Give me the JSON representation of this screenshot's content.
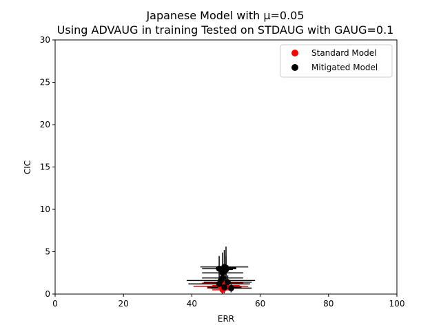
{
  "chart_data": {
    "type": "scatter",
    "title": "Japanese Model with μ=0.05",
    "subtitle": "Using ADVAUG in training Tested on STDAUG with GAUG=0.1",
    "xlabel": "ERR",
    "ylabel": "CIC",
    "xlim": [
      0,
      100
    ],
    "ylim": [
      0,
      30
    ],
    "x_ticks": [
      "0",
      "20",
      "40",
      "60",
      "80",
      "100"
    ],
    "y_ticks": [
      "0",
      "5",
      "10",
      "15",
      "20",
      "25",
      "30"
    ],
    "grid": false,
    "legend_position": "top-right",
    "colors": {
      "standard": "#ff0000",
      "mitigated": "#000000"
    },
    "series": [
      {
        "name": "Standard Model",
        "color": "#ff0000",
        "points": [
          {
            "x": 48.5,
            "y": 0.9,
            "xerr": 8.0,
            "yerr": 0.6
          },
          {
            "x": 49.5,
            "y": 0.7,
            "xerr": 5.0,
            "yerr": 0.4
          },
          {
            "x": 49.0,
            "y": 1.3,
            "xerr": 6.0,
            "yerr": 0.8
          },
          {
            "x": 49.0,
            "y": 0.5,
            "xerr": 3.0,
            "yerr": 0.5
          },
          {
            "x": 50.0,
            "y": 1.0,
            "xerr": 4.0,
            "yerr": 0.5
          }
        ]
      },
      {
        "name": "Mitigated Model",
        "color": "#000000",
        "points": [
          {
            "x": 48.0,
            "y": 3.0,
            "xerr": 5.0,
            "yerr": 1.5
          },
          {
            "x": 49.5,
            "y": 3.2,
            "xerr": 7.0,
            "yerr": 2.0
          },
          {
            "x": 49.0,
            "y": 2.5,
            "xerr": 6.0,
            "yerr": 2.4
          },
          {
            "x": 50.0,
            "y": 3.1,
            "xerr": 3.0,
            "yerr": 2.5
          },
          {
            "x": 48.5,
            "y": 1.6,
            "xerr": 10.0,
            "yerr": 0.4
          },
          {
            "x": 48.0,
            "y": 1.2,
            "xerr": 9.0,
            "yerr": 0.6
          },
          {
            "x": 50.5,
            "y": 1.4,
            "xerr": 7.0,
            "yerr": 0.8
          },
          {
            "x": 49.5,
            "y": 0.8,
            "xerr": 5.0,
            "yerr": 0.7
          },
          {
            "x": 51.5,
            "y": 0.7,
            "xerr": 6.0,
            "yerr": 0.5
          },
          {
            "x": 49.0,
            "y": 1.9,
            "xerr": 6.0,
            "yerr": 1.0
          },
          {
            "x": 50.0,
            "y": 2.9,
            "xerr": 2.0,
            "yerr": 1.6
          }
        ]
      }
    ]
  }
}
